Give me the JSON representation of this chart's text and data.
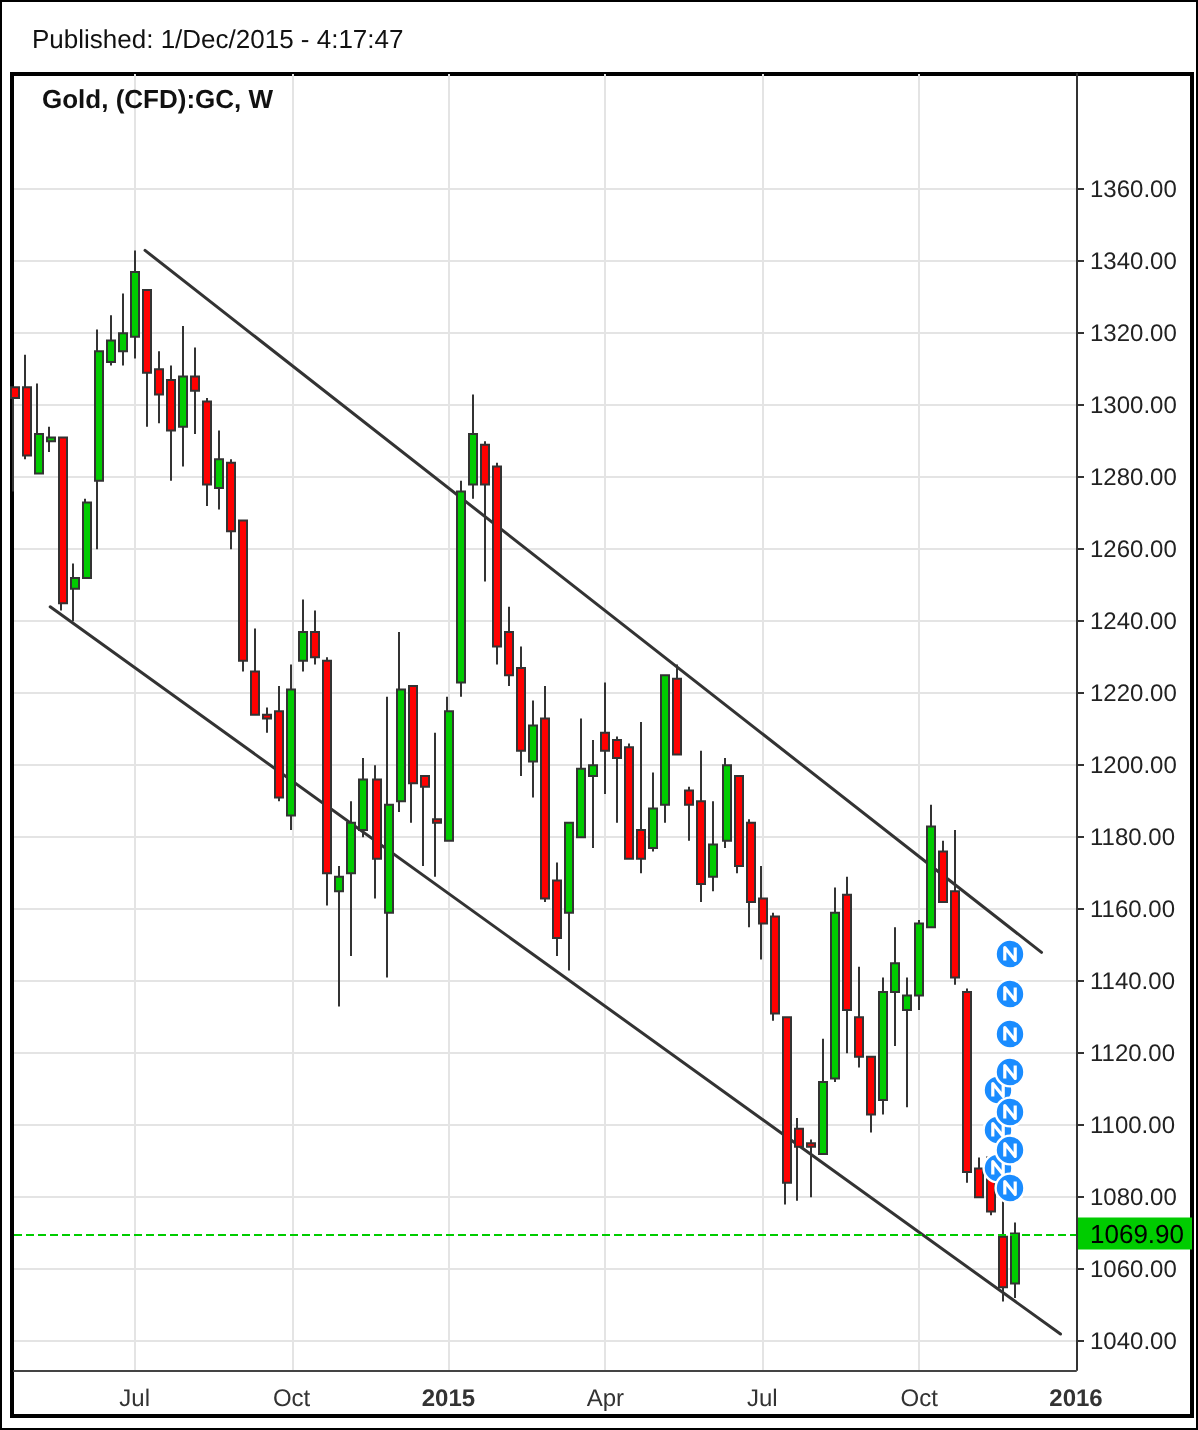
{
  "chart_data": {
    "type": "candlestick",
    "title": "Gold, (CFD):GC, W",
    "annotations": [
      "Published: 1/Dec/2015 - 4:17:47"
    ],
    "x": [
      "2014-04-27",
      "2014-05-04",
      "2014-05-11",
      "2014-05-18",
      "2014-05-25",
      "2014-06-01",
      "2014-06-08",
      "2014-06-15",
      "2014-06-22",
      "2014-06-29",
      "2014-07-06",
      "2014-07-13",
      "2014-07-20",
      "2014-07-27",
      "2014-08-03",
      "2014-08-10",
      "2014-08-17",
      "2014-08-24",
      "2014-08-31",
      "2014-09-07",
      "2014-09-14",
      "2014-09-21",
      "2014-09-28",
      "2014-10-05",
      "2014-10-12",
      "2014-10-19",
      "2014-10-26",
      "2014-11-02",
      "2014-11-09",
      "2014-11-16",
      "2014-11-23",
      "2014-11-30",
      "2014-12-07",
      "2014-12-14",
      "2014-12-21",
      "2014-12-28",
      "2015-01-04",
      "2015-01-11",
      "2015-01-18",
      "2015-01-25",
      "2015-02-01",
      "2015-02-08",
      "2015-02-15",
      "2015-02-22",
      "2015-03-01",
      "2015-03-08",
      "2015-03-15",
      "2015-03-22",
      "2015-03-29",
      "2015-04-05",
      "2015-04-12",
      "2015-04-19",
      "2015-04-26",
      "2015-05-03",
      "2015-05-10",
      "2015-05-17",
      "2015-05-24",
      "2015-05-31",
      "2015-06-07",
      "2015-06-14",
      "2015-06-21",
      "2015-06-28",
      "2015-07-05",
      "2015-07-12",
      "2015-07-19",
      "2015-07-26",
      "2015-08-02",
      "2015-08-09",
      "2015-08-16",
      "2015-08-23",
      "2015-08-30",
      "2015-09-06",
      "2015-09-13",
      "2015-09-20",
      "2015-09-27",
      "2015-10-04",
      "2015-10-11",
      "2015-10-18",
      "2015-10-25",
      "2015-11-01",
      "2015-11-08",
      "2015-11-15",
      "2015-11-22",
      "2015-11-29"
    ],
    "ohlc": [
      [
        1305,
        1305,
        1276,
        1302
      ],
      [
        1305,
        1314,
        1285,
        1286
      ],
      [
        1281,
        1306,
        1281,
        1292
      ],
      [
        1290,
        1294,
        1287,
        1291
      ],
      [
        1291,
        1291,
        1243,
        1245
      ],
      [
        1249,
        1256,
        1240,
        1252
      ],
      [
        1252,
        1274,
        1252,
        1273
      ],
      [
        1279,
        1321,
        1260,
        1315
      ],
      [
        1312,
        1325,
        1311,
        1318
      ],
      [
        1315,
        1331,
        1311,
        1320
      ],
      [
        1319,
        1343,
        1313,
        1337
      ],
      [
        1332,
        1332,
        1294,
        1309
      ],
      [
        1310,
        1315,
        1295,
        1303
      ],
      [
        1307,
        1311,
        1279,
        1293
      ],
      [
        1294,
        1322,
        1283,
        1308
      ],
      [
        1308,
        1316,
        1292,
        1304
      ],
      [
        1301,
        1302,
        1272,
        1278
      ],
      [
        1277,
        1293,
        1271,
        1285
      ],
      [
        1284,
        1285,
        1260,
        1265
      ],
      [
        1268,
        1268,
        1226,
        1229
      ],
      [
        1226,
        1238,
        1214,
        1214
      ],
      [
        1214,
        1216,
        1209,
        1213
      ],
      [
        1215,
        1222,
        1190,
        1191
      ],
      [
        1186,
        1228,
        1182,
        1221
      ],
      [
        1229,
        1246,
        1226,
        1237
      ],
      [
        1237,
        1243,
        1228,
        1230
      ],
      [
        1229,
        1230,
        1161,
        1170
      ],
      [
        1165,
        1172,
        1133,
        1169
      ],
      [
        1170,
        1190,
        1147,
        1184
      ],
      [
        1182,
        1202,
        1180,
        1196
      ],
      [
        1196,
        1200,
        1163,
        1174
      ],
      [
        1159,
        1219,
        1141,
        1189
      ],
      [
        1190,
        1237,
        1187,
        1221
      ],
      [
        1222,
        1222,
        1184,
        1195
      ],
      [
        1197,
        1197,
        1172,
        1194
      ],
      [
        1185,
        1209,
        1169,
        1184
      ],
      [
        1179,
        1219,
        1179,
        1215
      ],
      [
        1223,
        1279,
        1219,
        1276
      ],
      [
        1278,
        1303,
        1274,
        1292
      ],
      [
        1289,
        1290,
        1251,
        1278
      ],
      [
        1283,
        1284,
        1228,
        1233
      ],
      [
        1237,
        1244,
        1222,
        1225
      ],
      [
        1227,
        1233,
        1197,
        1204
      ],
      [
        1201,
        1218,
        1191,
        1211
      ],
      [
        1213,
        1222,
        1162,
        1163
      ],
      [
        1168,
        1173,
        1147,
        1152
      ],
      [
        1159,
        1184,
        1143,
        1184
      ],
      [
        1180,
        1213,
        1180,
        1199
      ],
      [
        1197,
        1207,
        1177,
        1200
      ],
      [
        1209,
        1223,
        1192,
        1204
      ],
      [
        1207,
        1208,
        1184,
        1202
      ],
      [
        1205,
        1206,
        1174,
        1174
      ],
      [
        1182,
        1212,
        1170,
        1174
      ],
      [
        1177,
        1198,
        1176,
        1188
      ],
      [
        1189,
        1225,
        1184,
        1225
      ],
      [
        1224,
        1228,
        1203,
        1203
      ],
      [
        1193,
        1194,
        1179,
        1189
      ],
      [
        1190,
        1204,
        1162,
        1167
      ],
      [
        1169,
        1190,
        1165,
        1178
      ],
      [
        1179,
        1202,
        1177,
        1200
      ],
      [
        1197,
        1197,
        1170,
        1172
      ],
      [
        1184,
        1185,
        1155,
        1162
      ],
      [
        1163,
        1172,
        1146,
        1156
      ],
      [
        1158,
        1159,
        1129,
        1131
      ],
      [
        1130,
        1130,
        1078,
        1084
      ],
      [
        1099,
        1102,
        1079,
        1094
      ],
      [
        1095,
        1096,
        1080,
        1094
      ],
      [
        1092,
        1124,
        1092,
        1112
      ],
      [
        1113,
        1166,
        1112,
        1159
      ],
      [
        1164,
        1169,
        1120,
        1132
      ],
      [
        1130,
        1144,
        1116,
        1119
      ],
      [
        1119,
        1119,
        1098,
        1103
      ],
      [
        1107,
        1141,
        1103,
        1137
      ],
      [
        1137,
        1155,
        1122,
        1145
      ],
      [
        1132,
        1141,
        1105,
        1136
      ],
      [
        1136,
        1157,
        1132,
        1156
      ],
      [
        1155,
        1189,
        1155,
        1183
      ],
      [
        1176,
        1179,
        1162,
        1162
      ],
      [
        1165,
        1182,
        1139,
        1141
      ],
      [
        1137,
        1138,
        1084,
        1087
      ],
      [
        1088,
        1091,
        1080,
        1080
      ],
      [
        1091,
        1091,
        1075,
        1076
      ],
      [
        1069,
        1079,
        1051,
        1055
      ],
      [
        1056,
        1073,
        1052,
        1069.9
      ]
    ],
    "colors": [
      "#ff0000",
      "#ff0000",
      "#00cc00",
      "#00cc00",
      "#ff0000",
      "#00cc00",
      "#00cc00",
      "#00cc00",
      "#00cc00",
      "#00cc00",
      "#00cc00",
      "#ff0000",
      "#ff0000",
      "#ff0000",
      "#00cc00",
      "#ff0000",
      "#ff0000",
      "#00cc00",
      "#ff0000",
      "#ff0000",
      "#ff0000",
      "#ff0000",
      "#ff0000",
      "#00cc00",
      "#00cc00",
      "#ff0000",
      "#ff0000",
      "#00cc00",
      "#00cc00",
      "#00cc00",
      "#ff0000",
      "#00cc00",
      "#00cc00",
      "#ff0000",
      "#ff0000",
      "#ff0000",
      "#00cc00",
      "#00cc00",
      "#00cc00",
      "#ff0000",
      "#ff0000",
      "#ff0000",
      "#ff0000",
      "#00cc00",
      "#ff0000",
      "#ff0000",
      "#00cc00",
      "#00cc00",
      "#00cc00",
      "#ff0000",
      "#ff0000",
      "#ff0000",
      "#ff0000",
      "#00cc00",
      "#00cc00",
      "#ff0000",
      "#ff0000",
      "#ff0000",
      "#00cc00",
      "#00cc00",
      "#ff0000",
      "#ff0000",
      "#ff0000",
      "#ff0000",
      "#ff0000",
      "#ff0000",
      "#ff0000",
      "#00cc00",
      "#00cc00",
      "#ff0000",
      "#ff0000",
      "#ff0000",
      "#00cc00",
      "#00cc00",
      "#00cc00",
      "#00cc00",
      "#00cc00",
      "#ff0000",
      "#ff0000",
      "#ff0000",
      "#ff0000",
      "#ff0000",
      "#ff0000",
      "#00cc00"
    ],
    "series": [
      {
        "type": "line",
        "x": [
          "2014-07-12",
          "2015-12-14"
        ],
        "values": [
          1343,
          1148
        ],
        "color": "#333333"
      },
      {
        "type": "line",
        "x": [
          "2014-05-18",
          "2015-12-25"
        ],
        "values": [
          1244,
          1042
        ],
        "color": "#333333"
      }
    ],
    "xlim": [
      "2014-04-27",
      "2016-01-03"
    ],
    "xticks": [
      {
        "value": "2014-07-06",
        "label": "Jul"
      },
      {
        "value": "2014-10-05",
        "label": "Oct"
      },
      {
        "value": "2015-01-04",
        "label": "2015"
      },
      {
        "value": "2015-04-05",
        "label": "Apr"
      },
      {
        "value": "2015-07-05",
        "label": "Jul"
      },
      {
        "value": "2015-10-04",
        "label": "Oct"
      },
      {
        "value": "2016-01-03",
        "label": "2016"
      }
    ],
    "ylim": [
      1032,
      1392
    ],
    "yticks": [
      {
        "value": 1040,
        "label": "1040.00"
      },
      {
        "value": 1060,
        "label": "1060.00"
      },
      {
        "value": 1080,
        "label": "1080.00"
      },
      {
        "value": 1100,
        "label": "1100.00"
      },
      {
        "value": 1120,
        "label": "1120.00"
      },
      {
        "value": 1140,
        "label": "1140.00"
      },
      {
        "value": 1160,
        "label": "1160.00"
      },
      {
        "value": 1180,
        "label": "1180.00"
      },
      {
        "value": 1200,
        "label": "1200.00"
      },
      {
        "value": 1220,
        "label": "1220.00"
      },
      {
        "value": 1240,
        "label": "1240.00"
      },
      {
        "value": 1260,
        "label": "1260.00"
      },
      {
        "value": 1280,
        "label": "1280.00"
      },
      {
        "value": 1300,
        "label": "1300.00"
      },
      {
        "value": 1320,
        "label": "1320.00"
      },
      {
        "value": 1340,
        "label": "1340.00"
      },
      {
        "value": 1360,
        "label": "1360.00"
      }
    ],
    "ref_lines": [
      {
        "axis": "y",
        "value": 1069.9,
        "label": "1069.90",
        "color": "#00cc00",
        "line_style": "dashed"
      }
    ],
    "grid": true
  }
}
